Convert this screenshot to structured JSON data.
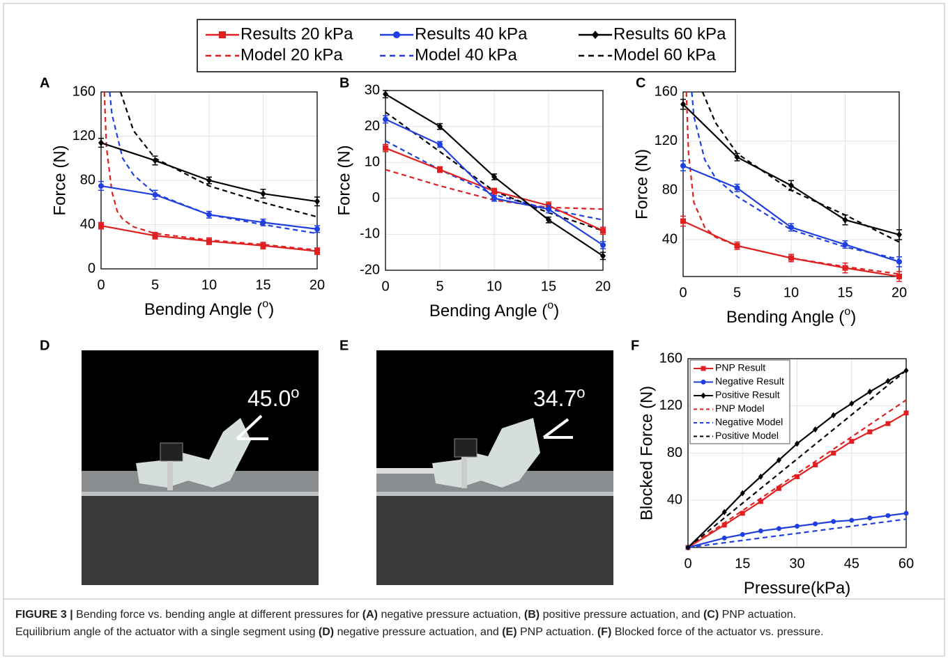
{
  "legend": [
    {
      "name": "Results 20 kPa",
      "color": "#e02020",
      "dash": false,
      "marker": "square"
    },
    {
      "name": "Model 20 kPa",
      "color": "#e02020",
      "dash": true,
      "marker": null
    },
    {
      "name": "Results 40 kPa",
      "color": "#1f3fe0",
      "dash": false,
      "marker": "circle"
    },
    {
      "name": "Model 40 kPa",
      "color": "#1f3fe0",
      "dash": true,
      "marker": null
    },
    {
      "name": "Results 60 kPa",
      "color": "#000000",
      "dash": false,
      "marker": "diamond"
    },
    {
      "name": "Model 60 kPa",
      "color": "#000000",
      "dash": true,
      "marker": null
    }
  ],
  "chart_data": [
    {
      "type": "line",
      "panel": "A",
      "xlabel": [
        "Bending Angle (",
        "o",
        ")"
      ],
      "ylabel": "Force (N)",
      "grid": true,
      "x": [
        0,
        5,
        10,
        15,
        20
      ],
      "xlim": [
        0,
        20
      ],
      "xticks": [
        0,
        5,
        10,
        15,
        20
      ],
      "ylim": [
        0,
        160
      ],
      "yticks": [
        0,
        40,
        80,
        120,
        160
      ],
      "series": [
        {
          "color": "#e02020",
          "dash": false,
          "marker": "square",
          "values": [
            39,
            30,
            25,
            21,
            16
          ],
          "errors": [
            3,
            3,
            3,
            3,
            3
          ]
        },
        {
          "color": "#1f3fe0",
          "dash": false,
          "marker": "circle",
          "values": [
            75,
            67,
            49,
            42,
            36
          ],
          "errors": [
            4,
            4,
            3,
            3,
            3
          ]
        },
        {
          "color": "#000000",
          "dash": false,
          "marker": "diamond",
          "values": [
            114,
            98,
            80,
            68,
            61
          ],
          "errors": [
            4,
            4,
            3,
            4,
            4
          ]
        },
        {
          "color": "#e02020",
          "dash": true,
          "marker": null,
          "x": [
            0.3,
            0.5,
            1,
            1.5,
            2,
            3,
            5,
            10,
            15,
            20
          ],
          "values": [
            160,
            110,
            70,
            52,
            45,
            38,
            32,
            26,
            22,
            17
          ]
        },
        {
          "color": "#1f3fe0",
          "dash": true,
          "marker": null,
          "x": [
            0.8,
            1,
            2,
            3,
            5,
            10,
            15,
            20
          ],
          "values": [
            160,
            140,
            100,
            85,
            68,
            49,
            40,
            32
          ]
        },
        {
          "color": "#000000",
          "dash": true,
          "marker": null,
          "x": [
            1.8,
            3,
            5,
            10,
            15,
            20
          ],
          "values": [
            160,
            125,
            100,
            75,
            60,
            47
          ]
        }
      ]
    },
    {
      "type": "line",
      "panel": "B",
      "xlabel": [
        "Bending Angle (",
        "o",
        ")"
      ],
      "ylabel": "Force (N)",
      "grid": true,
      "x": [
        0,
        5,
        10,
        15,
        20
      ],
      "xlim": [
        0,
        20
      ],
      "xticks": [
        0,
        5,
        10,
        15,
        20
      ],
      "ylim": [
        -20,
        30
      ],
      "yticks": [
        -20,
        -10,
        0,
        10,
        20,
        30
      ],
      "series": [
        {
          "color": "#e02020",
          "dash": false,
          "marker": "square",
          "values": [
            14,
            8,
            2,
            -2,
            -9
          ],
          "errors": [
            1,
            0.8,
            0.8,
            1,
            1
          ]
        },
        {
          "color": "#1f3fe0",
          "dash": false,
          "marker": "circle",
          "values": [
            22,
            15,
            0,
            -3,
            -13
          ],
          "errors": [
            1,
            0.8,
            0.8,
            1,
            1
          ]
        },
        {
          "color": "#000000",
          "dash": false,
          "marker": "diamond",
          "values": [
            29,
            20,
            6,
            -6,
            -16
          ],
          "errors": [
            1,
            0.8,
            0.8,
            0.8,
            1
          ]
        },
        {
          "color": "#e02020",
          "dash": true,
          "marker": null,
          "x": [
            0,
            5,
            10,
            15,
            20
          ],
          "values": [
            8,
            3.5,
            -0.5,
            -2.5,
            -3
          ]
        },
        {
          "color": "#1f3fe0",
          "dash": true,
          "marker": null,
          "x": [
            0,
            5,
            10,
            15,
            20
          ],
          "values": [
            16,
            8,
            1,
            -3,
            -6
          ]
        },
        {
          "color": "#000000",
          "dash": true,
          "marker": null,
          "x": [
            0,
            5,
            10,
            15,
            20
          ],
          "values": [
            24,
            13,
            2,
            -4,
            -9
          ]
        }
      ]
    },
    {
      "type": "line",
      "panel": "C",
      "xlabel": [
        "Bending Angle (",
        "o",
        ")"
      ],
      "ylabel": "Force (N)",
      "grid": true,
      "x": [
        0,
        5,
        10,
        15,
        20
      ],
      "xlim": [
        0,
        20
      ],
      "xticks": [
        0,
        5,
        10,
        15,
        20
      ],
      "ylim": [
        10,
        160
      ],
      "yticks": [
        40,
        80,
        120,
        160
      ],
      "series": [
        {
          "color": "#e02020",
          "dash": false,
          "marker": "square",
          "values": [
            55,
            35,
            25,
            17,
            10
          ],
          "errors": [
            4,
            3,
            3,
            4,
            4
          ]
        },
        {
          "color": "#1f3fe0",
          "dash": false,
          "marker": "circle",
          "values": [
            100,
            82,
            50,
            36,
            22
          ],
          "errors": [
            4,
            3,
            3,
            3,
            4
          ]
        },
        {
          "color": "#000000",
          "dash": false,
          "marker": "diamond",
          "values": [
            150,
            107,
            84,
            56,
            44
          ],
          "errors": [
            4,
            3,
            4,
            4,
            4
          ]
        },
        {
          "color": "#e02020",
          "dash": true,
          "marker": null,
          "x": [
            0.3,
            0.5,
            1,
            2,
            3,
            5,
            10,
            15,
            20
          ],
          "values": [
            160,
            110,
            70,
            50,
            42,
            35,
            25,
            18,
            12
          ]
        },
        {
          "color": "#1f3fe0",
          "dash": true,
          "marker": null,
          "x": [
            0.8,
            1,
            2,
            3,
            5,
            10,
            15,
            20
          ],
          "values": [
            160,
            140,
            105,
            90,
            75,
            48,
            34,
            24
          ]
        },
        {
          "color": "#000000",
          "dash": true,
          "marker": null,
          "x": [
            1.8,
            3,
            5,
            10,
            15,
            20
          ],
          "values": [
            160,
            135,
            110,
            80,
            60,
            38
          ]
        }
      ]
    },
    {
      "type": "line",
      "panel": "F",
      "xlabel": [
        "Pressure(kPa)"
      ],
      "ylabel": "Blocked Force (N)",
      "grid": true,
      "legend": "upper left",
      "x": [
        0,
        10,
        15,
        20,
        25,
        30,
        35,
        40,
        45,
        50,
        55,
        60
      ],
      "xlim": [
        0,
        60
      ],
      "xticks": [
        0,
        15,
        30,
        45,
        60
      ],
      "ylim": [
        0,
        160
      ],
      "yticks": [
        40,
        80,
        120,
        160
      ],
      "series": [
        {
          "name": "PNP Result",
          "color": "#e02020",
          "dash": false,
          "marker": "square",
          "values": [
            0,
            19,
            29,
            39,
            50,
            60,
            70,
            80,
            90,
            98,
            105,
            114
          ]
        },
        {
          "name": "Negative Result",
          "color": "#1f3fe0",
          "dash": false,
          "marker": "circle",
          "values": [
            0,
            8,
            11,
            14,
            16,
            18,
            20,
            22,
            23,
            25,
            27,
            29
          ]
        },
        {
          "name": "Positive Result",
          "color": "#000000",
          "dash": false,
          "marker": "diamond",
          "values": [
            0,
            30,
            46,
            60,
            74,
            88,
            100,
            112,
            122,
            132,
            141,
            150
          ]
        },
        {
          "name": "PNP Model",
          "color": "#e02020",
          "dash": true,
          "marker": null,
          "x": [
            0,
            60
          ],
          "values": [
            0,
            125
          ]
        },
        {
          "name": "Negative Model",
          "color": "#1f3fe0",
          "dash": true,
          "marker": null,
          "x": [
            0,
            60
          ],
          "values": [
            0,
            24
          ]
        },
        {
          "name": "Positive Model",
          "color": "#000000",
          "dash": true,
          "marker": null,
          "x": [
            0,
            60
          ],
          "values": [
            0,
            150
          ]
        }
      ]
    }
  ],
  "photos": [
    {
      "panel": "D",
      "angle": "45.0",
      "unit": "o"
    },
    {
      "panel": "E",
      "angle": "34.7",
      "unit": "o"
    }
  ],
  "caption": [
    [
      {
        "text": "FIGURE 3 |",
        "bold": true
      },
      {
        "text": " Bending force vs. bending angle at different pressures for ",
        "bold": false
      },
      {
        "text": "(A)",
        "bold": true
      },
      {
        "text": " negative pressure actuation, ",
        "bold": false
      },
      {
        "text": "(B)",
        "bold": true
      },
      {
        "text": " positive pressure actuation, and ",
        "bold": false
      },
      {
        "text": "(C)",
        "bold": true
      },
      {
        "text": " PNP actuation.",
        "bold": false
      }
    ],
    [
      {
        "text": "Equilibrium angle of the actuator with a single segment using ",
        "bold": false
      },
      {
        "text": "(D)",
        "bold": true
      },
      {
        "text": " negative pressure actuation, and ",
        "bold": false
      },
      {
        "text": "(E)",
        "bold": true
      },
      {
        "text": " PNP actuation. ",
        "bold": false
      },
      {
        "text": "(F)",
        "bold": true
      },
      {
        "text": " Blocked force of the actuator vs. pressure.",
        "bold": false
      }
    ]
  ]
}
